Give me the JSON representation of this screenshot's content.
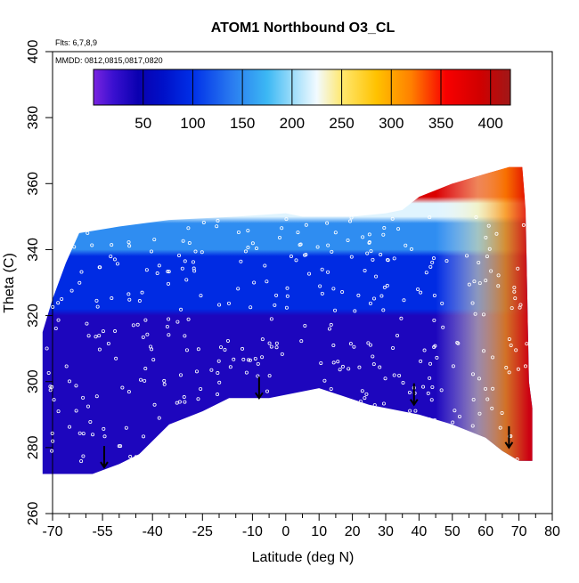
{
  "chart_data": {
    "type": "heatmap",
    "title": "ATOM1 Northbound O3_CL",
    "subtitle_flights": "Flts: 6,7,8,9",
    "subtitle_dates": "MMDD: 0812,0815,0817,0820",
    "xlabel": "Latitude (deg N)",
    "ylabel": "Theta (C)",
    "xlim": [
      -70,
      80
    ],
    "ylim": [
      260,
      400
    ],
    "x_ticks": [
      -70,
      -55,
      -40,
      -25,
      -10,
      0,
      10,
      20,
      30,
      40,
      50,
      60,
      70,
      80
    ],
    "x_tick_labels": [
      "-70",
      "-55",
      "-40",
      "-25",
      "-10",
      "0",
      "10",
      "20",
      "30",
      "40",
      "50",
      "60",
      "70",
      "80"
    ],
    "x_minor_ticks": [
      -65,
      -60,
      -50,
      -45,
      -35,
      -30,
      -20,
      -15,
      -5,
      5,
      15,
      25,
      35,
      45,
      55,
      65,
      75
    ],
    "y_ticks": [
      260,
      280,
      300,
      320,
      340,
      360,
      380,
      400
    ],
    "y_tick_labels": [
      "260",
      "280",
      "300",
      "320",
      "340",
      "360",
      "380",
      "400"
    ],
    "colorbar": {
      "range": [
        0,
        420
      ],
      "ticks": [
        50,
        100,
        150,
        200,
        250,
        300,
        350,
        400
      ],
      "tick_labels": [
        "50",
        "100",
        "150",
        "200",
        "250",
        "300",
        "350",
        "400"
      ],
      "stops": [
        [
          0,
          "#7a24e0"
        ],
        [
          20,
          "#3a10d0"
        ],
        [
          45,
          "#0a00b0"
        ],
        [
          70,
          "#0010c8"
        ],
        [
          100,
          "#0030e8"
        ],
        [
          140,
          "#2a7cf0"
        ],
        [
          175,
          "#3cb8f4"
        ],
        [
          200,
          "#9adcfa"
        ],
        [
          225,
          "#f2faff"
        ],
        [
          250,
          "#ffe870"
        ],
        [
          285,
          "#ffc200"
        ],
        [
          320,
          "#ff8000"
        ],
        [
          355,
          "#f80000"
        ],
        [
          390,
          "#d00000"
        ],
        [
          420,
          "#a01818"
        ]
      ]
    },
    "field_top": [
      [
        -73,
        315
      ],
      [
        -70,
        325
      ],
      [
        -66,
        336
      ],
      [
        -62,
        345
      ],
      [
        -50,
        347
      ],
      [
        -35,
        349
      ],
      [
        -15,
        350
      ],
      [
        0,
        351
      ],
      [
        5,
        350
      ],
      [
        20,
        350
      ],
      [
        30,
        351
      ],
      [
        35,
        352
      ],
      [
        40,
        356
      ],
      [
        50,
        360
      ],
      [
        60,
        363
      ],
      [
        67,
        365
      ],
      [
        71,
        365
      ],
      [
        72,
        352
      ],
      [
        73,
        300
      ],
      [
        74,
        292
      ]
    ],
    "field_bottom": [
      [
        -73,
        272
      ],
      [
        -58,
        272
      ],
      [
        -50,
        275
      ],
      [
        -44,
        278
      ],
      [
        -35,
        287
      ],
      [
        -25,
        291
      ],
      [
        -17,
        295
      ],
      [
        -5,
        295
      ],
      [
        10,
        298
      ],
      [
        25,
        293
      ],
      [
        40,
        290
      ],
      [
        50,
        287
      ],
      [
        60,
        283
      ],
      [
        65,
        279
      ],
      [
        70,
        276
      ],
      [
        74,
        276
      ]
    ],
    "value_layers": [
      {
        "theta_above": 356,
        "value": 380
      },
      {
        "theta_above": 349,
        "value": 220
      },
      {
        "theta_above": 340,
        "value": 150
      },
      {
        "theta_above": 322,
        "value": 95
      },
      {
        "theta_above": 0,
        "value": 35
      }
    ],
    "arrows_lat": [
      -54.5,
      -8,
      38.5,
      67
    ],
    "arrows_base_theta": [
      274,
      295,
      293,
      280
    ]
  }
}
